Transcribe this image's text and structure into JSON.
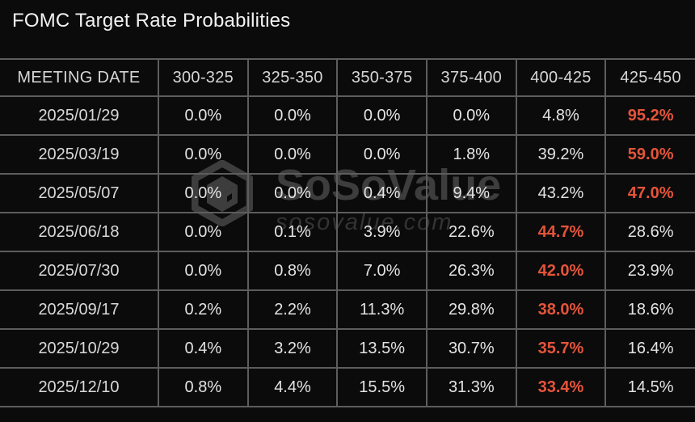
{
  "title": "FOMC Target Rate Probabilities",
  "watermark": {
    "brand": "SoSoValue",
    "domain": "sosovalue.com",
    "logo": "sosovalue-cube-logo"
  },
  "colors": {
    "background": "#0b0b0b",
    "grid": "#5d5d5d",
    "text": "#e3e3e3",
    "header_text": "#d6d6d6",
    "highlight": "#e5543a",
    "watermark": "#3d3d3d"
  },
  "table": {
    "columns": [
      "MEETING DATE",
      "300-325",
      "325-350",
      "350-375",
      "375-400",
      "400-425",
      "425-450"
    ],
    "rows": [
      {
        "date": "2025/01/29",
        "values": [
          "0.0%",
          "0.0%",
          "0.0%",
          "0.0%",
          "4.8%",
          "95.2%"
        ],
        "highlight": 5
      },
      {
        "date": "2025/03/19",
        "values": [
          "0.0%",
          "0.0%",
          "0.0%",
          "1.8%",
          "39.2%",
          "59.0%"
        ],
        "highlight": 5
      },
      {
        "date": "2025/05/07",
        "values": [
          "0.0%",
          "0.0%",
          "0.4%",
          "9.4%",
          "43.2%",
          "47.0%"
        ],
        "highlight": 5
      },
      {
        "date": "2025/06/18",
        "values": [
          "0.0%",
          "0.1%",
          "3.9%",
          "22.6%",
          "44.7%",
          "28.6%"
        ],
        "highlight": 4
      },
      {
        "date": "2025/07/30",
        "values": [
          "0.0%",
          "0.8%",
          "7.0%",
          "26.3%",
          "42.0%",
          "23.9%"
        ],
        "highlight": 4
      },
      {
        "date": "2025/09/17",
        "values": [
          "0.2%",
          "2.2%",
          "11.3%",
          "29.8%",
          "38.0%",
          "18.6%"
        ],
        "highlight": 4
      },
      {
        "date": "2025/10/29",
        "values": [
          "0.4%",
          "3.2%",
          "13.5%",
          "30.7%",
          "35.7%",
          "16.4%"
        ],
        "highlight": 4
      },
      {
        "date": "2025/12/10",
        "values": [
          "0.8%",
          "4.4%",
          "15.5%",
          "31.3%",
          "33.4%",
          "14.5%"
        ],
        "highlight": 4
      }
    ]
  },
  "chart_data": {
    "type": "table",
    "title": "FOMC Target Rate Probabilities",
    "columns": [
      "MEETING DATE",
      "300-325",
      "325-350",
      "350-375",
      "375-400",
      "400-425",
      "425-450"
    ],
    "unit": "%",
    "rows": [
      [
        "2025/01/29",
        0.0,
        0.0,
        0.0,
        0.0,
        4.8,
        95.2
      ],
      [
        "2025/03/19",
        0.0,
        0.0,
        0.0,
        1.8,
        39.2,
        59.0
      ],
      [
        "2025/05/07",
        0.0,
        0.0,
        0.4,
        9.4,
        43.2,
        47.0
      ],
      [
        "2025/06/18",
        0.0,
        0.1,
        3.9,
        22.6,
        44.7,
        28.6
      ],
      [
        "2025/07/30",
        0.0,
        0.8,
        7.0,
        26.3,
        42.0,
        23.9
      ],
      [
        "2025/09/17",
        0.2,
        2.2,
        11.3,
        29.8,
        38.0,
        18.6
      ],
      [
        "2025/10/29",
        0.4,
        3.2,
        13.5,
        30.7,
        35.7,
        16.4
      ],
      [
        "2025/12/10",
        0.8,
        4.4,
        15.5,
        31.3,
        33.4,
        14.5
      ]
    ],
    "highlighted_cells_note": "largest probability in each row rendered in orange #e5543a"
  }
}
